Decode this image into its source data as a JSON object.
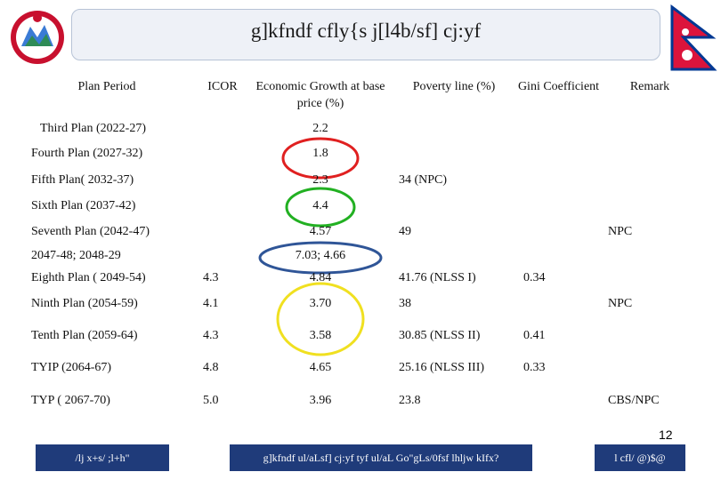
{
  "header": {
    "title": "g]kfndf cfly{s j[l4b/sf] cj:yf"
  },
  "table": {
    "columns": [
      "Plan Period",
      "ICOR",
      "Economic Growth at base price (%)",
      "Poverty line (%)",
      "Gini Coefficient",
      "Remark"
    ],
    "rows": [
      {
        "period": "Third Plan (2022-27)",
        "growth": "2.2"
      },
      {
        "period": "Fourth Plan (2027-32)",
        "growth": "1.8"
      },
      {
        "period": "Fifth Plan( 2032-37)",
        "growth": "2.3",
        "poverty": "34 (NPC)"
      },
      {
        "period": "Sixth Plan (2037-42)",
        "growth": "4.4"
      },
      {
        "period": "Seventh Plan (2042-47)",
        "growth": "4.57",
        "poverty": "49",
        "remark": "NPC"
      },
      {
        "period": "2047-48; 2048-29",
        "growth": "7.03; 4.66"
      },
      {
        "period": "Eighth Plan ( 2049-54)",
        "icor": "4.3",
        "growth": "4.84",
        "poverty": "41.76 (NLSS I)",
        "gini": "0.34"
      },
      {
        "period": "Ninth Plan (2054-59)",
        "icor": "4.1",
        "growth": "3.70",
        "poverty": "38",
        "remark": "NPC"
      },
      {
        "period": "Tenth Plan (2059-64)",
        "icor": "4.3",
        "growth": "3.58",
        "poverty": "30.85 (NLSS II)",
        "gini": "0.41"
      },
      {
        "period": "TYIP (2064-67)",
        "icor": "4.8",
        "growth": "4.65",
        "poverty": "25.16  (NLSS III)",
        "gini": "0.33"
      },
      {
        "period": "TYP ( 2067-70)",
        "icor": "5.0",
        "growth": "3.96",
        "poverty": "23.8",
        "remark": "CBS/NPC"
      }
    ]
  },
  "footer": {
    "page": "12",
    "left": "/lj x+s/ ;l+h\"",
    "center": "g]kfndf ul/aLsf] cj:yf tyf ul/aL Go\"gLs/0fsf lhljw kIfx?",
    "right": "l cfl/ @)$@"
  }
}
